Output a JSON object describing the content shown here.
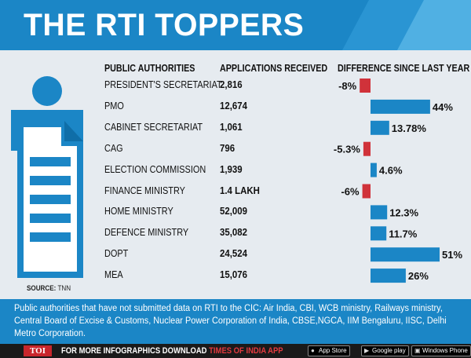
{
  "title": "THE RTI TOPPERS",
  "headers": {
    "authority": "PUBLIC AUTHORITIES",
    "applications": "APPLICATIONS RECEIVED",
    "difference": "DIFFERENCE SINCE LAST YEAR"
  },
  "colors": {
    "header_blue": "#1b86c6",
    "positive_bar": "#1b86c6",
    "negative_bar": "#d0323a",
    "background": "#e6ebf0"
  },
  "chart_data": {
    "type": "bar",
    "orientation": "horizontal",
    "title": "THE RTI TOPPERS",
    "categories": [
      "PRESIDENT'S SECRETARIAT",
      "PMO",
      "CABINET SECRETARIAT",
      "CAG",
      "ELECTION COMMISSION",
      "FINANCE MINISTRY",
      "HOME MINISTRY",
      "DEFENCE MINISTRY",
      "DOPT",
      "MEA"
    ],
    "applications": [
      "2,816",
      "12,674",
      "1,061",
      "796",
      "1,939",
      "1.4 LAKH",
      "52,009",
      "35,082",
      "24,524",
      "15,076"
    ],
    "series": [
      {
        "name": "DIFFERENCE SINCE LAST YEAR",
        "values": [
          -8,
          44,
          13.78,
          -5.3,
          4.6,
          -6,
          12.3,
          11.7,
          51,
          26
        ]
      }
    ],
    "value_labels": [
      "-8%",
      "44%",
      "13.78%",
      "-5.3%",
      "4.6%",
      "-6%",
      "12.3%",
      "11.7%",
      "51%",
      "26%"
    ],
    "unit": "%",
    "xlim": [
      -8,
      51
    ]
  },
  "source": {
    "label": "SOURCE:",
    "value": "TNN"
  },
  "note": "Public authorities that have not submitted data on RTI to the CIC: Air India, CBI, WCB ministry, Railways ministry,  Central Board of Excise & Customs, Nuclear Power Corporation of India, CBSE,NGCA, IIM Bengaluru, IISC, Delhi Metro Corporation.",
  "footer": {
    "logo": "TOI",
    "text": "FOR MORE  INFOGRAPHICS DOWNLOAD ",
    "highlight": "TIMES OF INDIA  APP",
    "stores": [
      "App Store",
      "Google play",
      "Windows Phone"
    ],
    "store_icons": [
      "apple-icon",
      "play-icon",
      "windows-icon"
    ]
  }
}
